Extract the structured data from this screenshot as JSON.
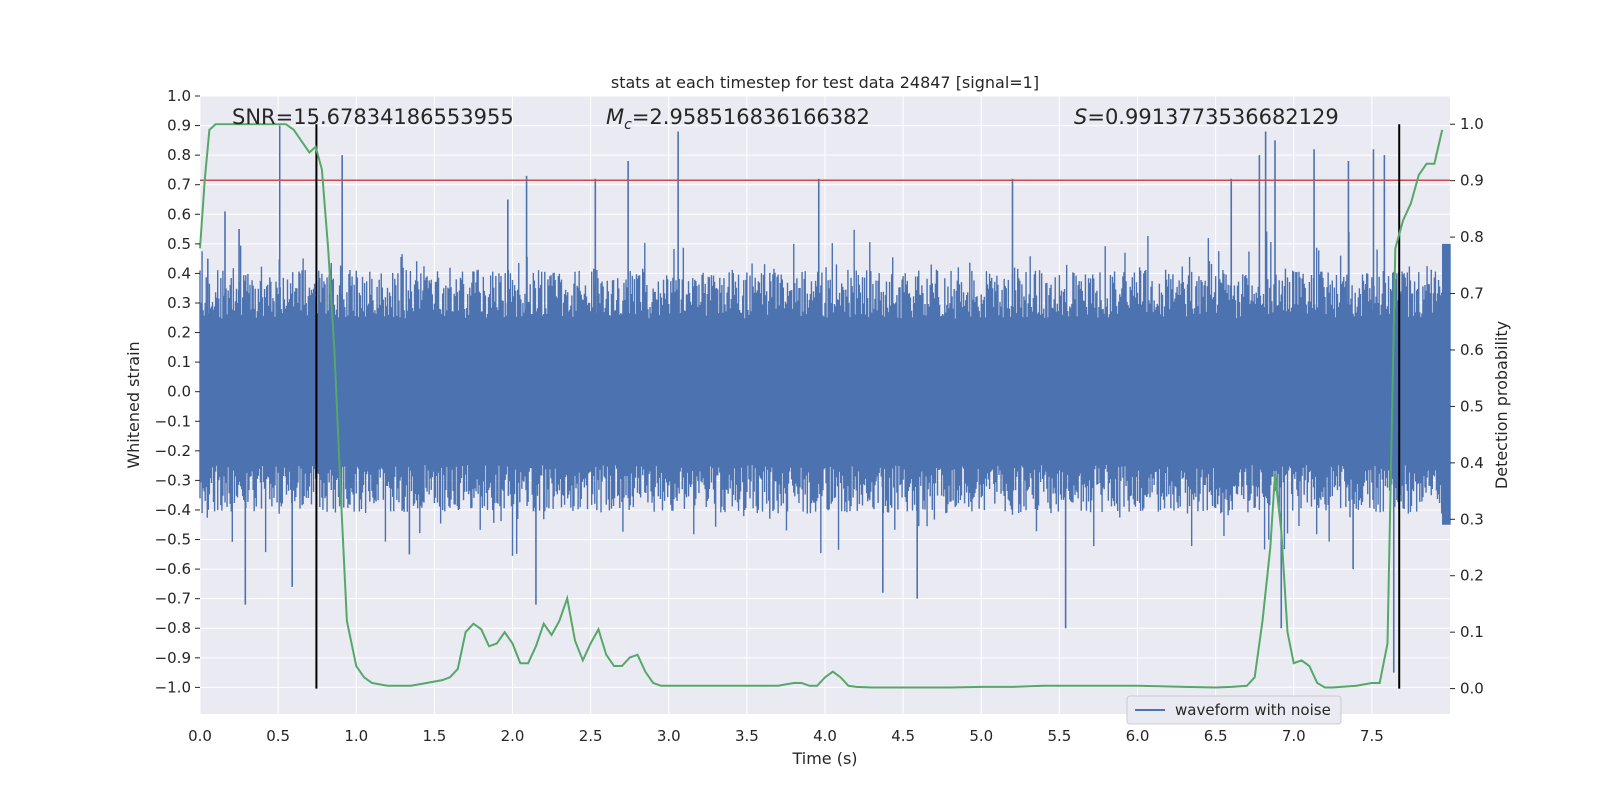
{
  "chart_data": {
    "type": "line",
    "title": "stats at each timestep for test data 24847 [signal=1]",
    "xlabel": "Time (s)",
    "ylabel": "Whitened strain",
    "y2label": "Detection probability",
    "xlim": [
      0.0,
      8.0
    ],
    "ylim": [
      -1.09,
      1.0
    ],
    "y2lim": [
      -0.045,
      1.05
    ],
    "xticks": [
      0.0,
      0.5,
      1.0,
      1.5,
      2.0,
      2.5,
      3.0,
      3.5,
      4.0,
      4.5,
      5.0,
      5.5,
      6.0,
      6.5,
      7.0,
      7.5
    ],
    "xtick_labels": [
      "0.0",
      "0.5",
      "1.0",
      "1.5",
      "2.0",
      "2.5",
      "3.0",
      "3.5",
      "4.0",
      "4.5",
      "5.0",
      "5.5",
      "6.0",
      "6.5",
      "7.0",
      "7.5"
    ],
    "yticks": [
      1.0,
      0.9,
      0.8,
      0.7,
      0.6,
      0.5,
      0.4,
      0.3,
      0.2,
      0.1,
      0.0,
      -0.1,
      -0.2,
      -0.3,
      -0.4,
      -0.5,
      -0.6,
      -0.7,
      -0.8,
      -0.9,
      -1.0
    ],
    "ytick_labels": [
      "1.0",
      "0.9",
      "0.8",
      "0.7",
      "0.6",
      "0.5",
      "0.4",
      "0.3",
      "0.2",
      "0.1",
      "0.0",
      "−0.1",
      "−0.2",
      "−0.3",
      "−0.4",
      "−0.5",
      "−0.6",
      "−0.7",
      "−0.8",
      "−0.9",
      "−1.0"
    ],
    "y2ticks": [
      1.0,
      0.9,
      0.8,
      0.7,
      0.6,
      0.5,
      0.4,
      0.3,
      0.2,
      0.1,
      0.0
    ],
    "y2tick_labels": [
      "1.0",
      "0.9",
      "0.8",
      "0.7",
      "0.6",
      "0.5",
      "0.4",
      "0.3",
      "0.2",
      "0.1",
      "0.0"
    ],
    "grid": true,
    "legend": {
      "placement": "lower-right",
      "entries": [
        "waveform with noise"
      ]
    },
    "annotations": {
      "snr": "SNR=15.67834186553955",
      "mc_symbol": "M",
      "mc_sub": "c",
      "mc_value": "=2.958516836166382",
      "s_symbol": "S",
      "s_value": "=0.9913773536682129"
    },
    "threshold_line": {
      "y": 0.715,
      "color": "#c44e52"
    },
    "vertical_lines": {
      "x": [
        0.745,
        7.675
      ],
      "color": "#000000"
    },
    "waveform": {
      "name": "waveform with noise",
      "color": "#4c72b0",
      "t_start": 0.0,
      "t_end": 8.0,
      "envelope_typical": 0.33,
      "peaks": [
        {
          "x": 0.05,
          "y": 0.45
        },
        {
          "x": 0.16,
          "y": 0.61
        },
        {
          "x": 0.25,
          "y": 0.55
        },
        {
          "x": 0.29,
          "y": -0.72
        },
        {
          "x": 0.51,
          "y": 0.9
        },
        {
          "x": 0.59,
          "y": -0.66
        },
        {
          "x": 0.91,
          "y": 0.8
        },
        {
          "x": 1.34,
          "y": -0.55
        },
        {
          "x": 1.97,
          "y": 0.65
        },
        {
          "x": 2.09,
          "y": 0.73
        },
        {
          "x": 2.15,
          "y": -0.72
        },
        {
          "x": 2.53,
          "y": 0.72
        },
        {
          "x": 2.74,
          "y": 0.78
        },
        {
          "x": 3.06,
          "y": 0.88
        },
        {
          "x": 3.96,
          "y": 0.72
        },
        {
          "x": 4.37,
          "y": -0.68
        },
        {
          "x": 4.59,
          "y": -0.7
        },
        {
          "x": 5.2,
          "y": 0.72
        },
        {
          "x": 5.54,
          "y": -0.8
        },
        {
          "x": 6.6,
          "y": 0.72
        },
        {
          "x": 6.78,
          "y": 0.8
        },
        {
          "x": 6.82,
          "y": 0.88
        },
        {
          "x": 6.88,
          "y": 0.85
        },
        {
          "x": 6.92,
          "y": -0.8
        },
        {
          "x": 7.13,
          "y": 0.82
        },
        {
          "x": 7.35,
          "y": 0.78
        },
        {
          "x": 7.38,
          "y": -0.6
        },
        {
          "x": 7.51,
          "y": 0.82
        },
        {
          "x": 7.58,
          "y": 0.8
        },
        {
          "x": 7.64,
          "y": -0.95
        }
      ]
    },
    "probability": {
      "color": "#55a868",
      "x": [
        0.0,
        0.03,
        0.06,
        0.1,
        0.15,
        0.2,
        0.3,
        0.4,
        0.5,
        0.55,
        0.6,
        0.65,
        0.7,
        0.74,
        0.78,
        0.82,
        0.86,
        0.9,
        0.94,
        1.0,
        1.05,
        1.1,
        1.2,
        1.35,
        1.45,
        1.55,
        1.6,
        1.65,
        1.7,
        1.75,
        1.8,
        1.85,
        1.9,
        1.95,
        2.0,
        2.05,
        2.1,
        2.15,
        2.2,
        2.25,
        2.3,
        2.35,
        2.4,
        2.45,
        2.5,
        2.55,
        2.6,
        2.65,
        2.7,
        2.75,
        2.8,
        2.85,
        2.9,
        2.95,
        3.0,
        3.05,
        3.1,
        3.15,
        3.2,
        3.3,
        3.4,
        3.5,
        3.6,
        3.7,
        3.8,
        3.85,
        3.9,
        3.95,
        4.0,
        4.05,
        4.1,
        4.15,
        4.2,
        4.3,
        4.5,
        4.8,
        5.0,
        5.2,
        5.4,
        5.6,
        6.0,
        6.3,
        6.5,
        6.6,
        6.7,
        6.75,
        6.8,
        6.85,
        6.88,
        6.92,
        6.96,
        7.0,
        7.05,
        7.1,
        7.15,
        7.2,
        7.25,
        7.3,
        7.4,
        7.5,
        7.55,
        7.6,
        7.65,
        7.7,
        7.75,
        7.8,
        7.85,
        7.9,
        7.95
      ],
      "y": [
        0.78,
        0.9,
        0.99,
        1.0,
        1.0,
        1.0,
        1.0,
        1.0,
        1.0,
        1.0,
        0.99,
        0.97,
        0.95,
        0.96,
        0.92,
        0.78,
        0.6,
        0.35,
        0.12,
        0.04,
        0.02,
        0.01,
        0.005,
        0.005,
        0.01,
        0.015,
        0.02,
        0.035,
        0.1,
        0.115,
        0.105,
        0.075,
        0.08,
        0.1,
        0.08,
        0.045,
        0.045,
        0.075,
        0.115,
        0.095,
        0.12,
        0.16,
        0.085,
        0.05,
        0.08,
        0.105,
        0.06,
        0.04,
        0.04,
        0.055,
        0.06,
        0.03,
        0.01,
        0.005,
        0.005,
        0.005,
        0.005,
        0.005,
        0.005,
        0.005,
        0.005,
        0.005,
        0.005,
        0.005,
        0.01,
        0.01,
        0.005,
        0.005,
        0.02,
        0.03,
        0.02,
        0.005,
        0.003,
        0.002,
        0.002,
        0.002,
        0.003,
        0.003,
        0.005,
        0.005,
        0.005,
        0.003,
        0.002,
        0.003,
        0.005,
        0.02,
        0.12,
        0.25,
        0.38,
        0.28,
        0.1,
        0.045,
        0.05,
        0.04,
        0.01,
        0.002,
        0.002,
        0.003,
        0.005,
        0.01,
        0.01,
        0.08,
        0.78,
        0.83,
        0.86,
        0.91,
        0.93,
        0.93,
        0.99
      ]
    }
  }
}
